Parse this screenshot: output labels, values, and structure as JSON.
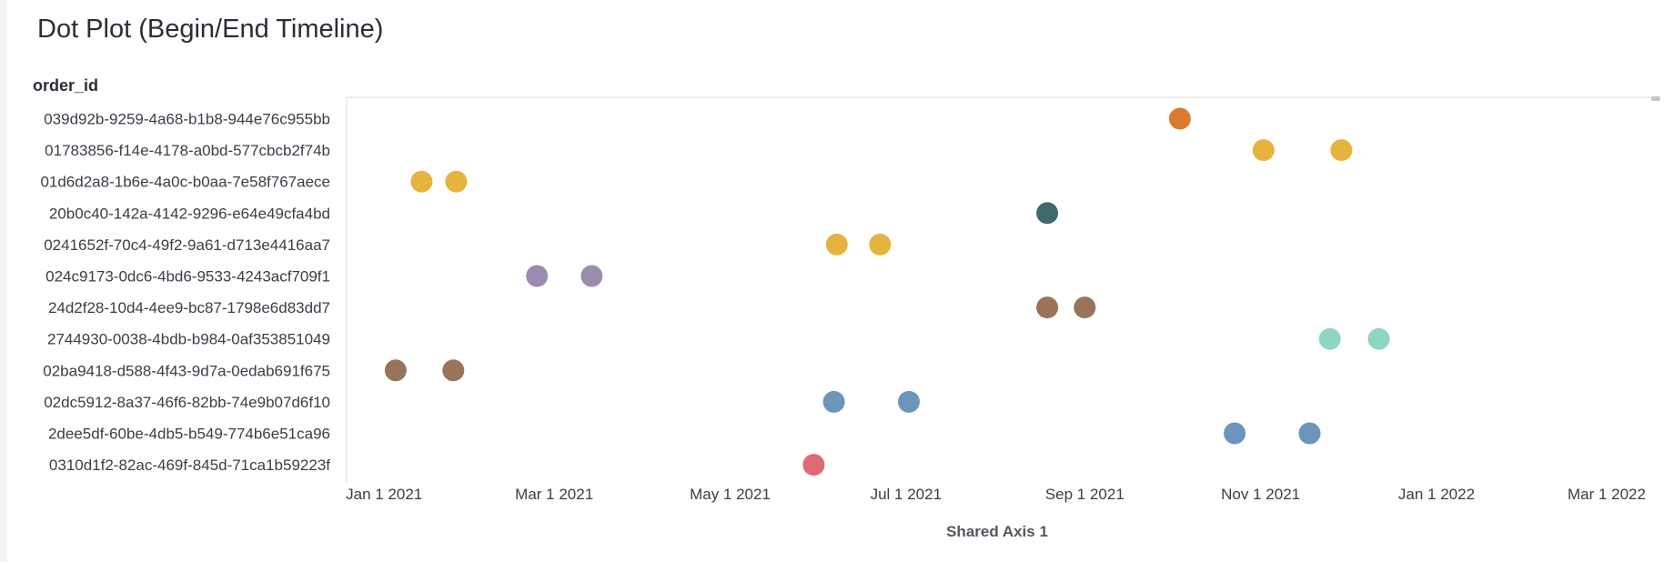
{
  "chart_data": {
    "type": "scatter",
    "title": "Dot Plot (Begin/End Timeline)",
    "ylabel": "order_id",
    "xlabel": "Shared Axis 1",
    "x_ticks": [
      "Jan 1 2021",
      "Mar 1 2021",
      "May 1 2021",
      "Jul 1 2021",
      "Sep 1 2021",
      "Nov 1 2021",
      "Jan 1 2022",
      "Mar 1 2022"
    ],
    "xlim": [
      "2020-12-19",
      "2022-03-19"
    ],
    "categories": [
      "039d92b-9259-4a68-b1b8-944e76c955bb",
      "01783856-f14e-4178-a0bd-577cbcb2f74b",
      "01d6d2a8-1b6e-4a0c-b0aa-7e58f767aece",
      "20b0c40-142a-4142-9296-e64e49cfa4bd",
      "0241652f-70c4-49f2-9a61-d713e4416aa7",
      "024c9173-0dc6-4bd6-9533-4243acf709f1",
      "24d2f28-10d4-4ee9-bc87-1798e6d83dd7",
      "2744930-0038-4bdb-b984-0af353851049",
      "02ba9418-d588-4f43-9d7a-0edab691f675",
      "02dc5912-8a37-46f6-82bb-74e9b07d6f10",
      "2dee5df-60be-4db5-b549-774b6e51ca96",
      "0310d1f2-82ac-469f-845d-71ca1b59223f"
    ],
    "points": [
      {
        "row": 0,
        "dates": [
          "2021-10-04"
        ],
        "color": "#db7b2f"
      },
      {
        "row": 1,
        "dates": [
          "2021-11-02",
          "2021-11-29"
        ],
        "color": "#e5b43e"
      },
      {
        "row": 2,
        "dates": [
          "2021-01-14",
          "2021-01-26"
        ],
        "color": "#e5b43e"
      },
      {
        "row": 3,
        "dates": [
          "2021-08-19"
        ],
        "color": "#3d6a6e"
      },
      {
        "row": 4,
        "dates": [
          "2021-06-07",
          "2021-06-22"
        ],
        "color": "#e5b43e"
      },
      {
        "row": 5,
        "dates": [
          "2021-02-23",
          "2021-03-14"
        ],
        "color": "#9c8cb0"
      },
      {
        "row": 6,
        "dates": [
          "2021-08-19",
          "2021-09-01"
        ],
        "color": "#9a7459"
      },
      {
        "row": 7,
        "dates": [
          "2021-11-25",
          "2021-12-12"
        ],
        "color": "#8ed6bf"
      },
      {
        "row": 8,
        "dates": [
          "2021-01-05",
          "2021-01-25"
        ],
        "color": "#9a7459"
      },
      {
        "row": 9,
        "dates": [
          "2021-06-06",
          "2021-07-02"
        ],
        "color": "#6b95bd"
      },
      {
        "row": 10,
        "dates": [
          "2021-10-23",
          "2021-11-18"
        ],
        "color": "#6b95bd"
      },
      {
        "row": 11,
        "dates": [
          "2021-05-30"
        ],
        "color": "#de6b73"
      }
    ],
    "grid": false,
    "legend": "none"
  }
}
